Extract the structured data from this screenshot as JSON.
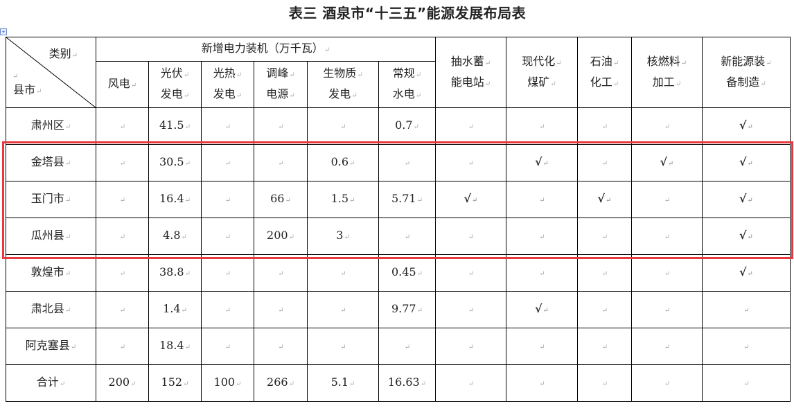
{
  "title": "表三  酒泉市“十三五”能源发展布局表",
  "header": {
    "category_label": "类别",
    "county_label": "县市",
    "group_label": "新增电力装机（万千瓦）",
    "power_columns": [
      [
        "风电"
      ],
      [
        "光伏",
        "发电"
      ],
      [
        "光热",
        "发电"
      ],
      [
        "调峰",
        "电源"
      ],
      [
        "生物质",
        "发电"
      ],
      [
        "常规",
        "水电"
      ]
    ],
    "other_columns": [
      [
        "抽水蓄",
        "能电站"
      ],
      [
        "现代化",
        "煤矿"
      ],
      [
        "石油",
        "化工"
      ],
      [
        "核燃料",
        "加工"
      ],
      [
        "新能源装",
        "备制造"
      ]
    ]
  },
  "rows": [
    {
      "name": "肃州区",
      "cells": [
        "",
        "41.5",
        "",
        "",
        "",
        "0.7",
        "",
        "",
        "",
        "",
        "√"
      ]
    },
    {
      "name": "金塔县",
      "cells": [
        "",
        "30.5",
        "",
        "",
        "0.6",
        "",
        "",
        "√",
        "",
        "√",
        "√"
      ]
    },
    {
      "name": "玉门市",
      "cells": [
        "",
        "16.4",
        "",
        "66",
        "1.5",
        "5.71",
        "√",
        "",
        "√",
        "",
        "√"
      ]
    },
    {
      "name": "瓜州县",
      "cells": [
        "",
        "4.8",
        "",
        "200",
        "3",
        "",
        "",
        "",
        "",
        "",
        "√"
      ]
    },
    {
      "name": "敦煌市",
      "cells": [
        "",
        "38.8",
        "",
        "",
        "",
        "0.45",
        "",
        "",
        "",
        "",
        "√"
      ]
    },
    {
      "name": "肃北县",
      "cells": [
        "",
        "1.4",
        "",
        "",
        "",
        "9.77",
        "",
        "√",
        "",
        "",
        ""
      ]
    },
    {
      "name": "阿克塞县",
      "cells": [
        "",
        "18.4",
        "",
        "",
        "",
        "",
        "",
        "",
        "",
        "",
        ""
      ]
    },
    {
      "name": "合计",
      "cells": [
        "200",
        "152",
        "100",
        "266",
        "5.1",
        "16.63",
        "",
        "",
        "",
        "",
        ""
      ]
    }
  ],
  "highlight_color": "#e8393f"
}
